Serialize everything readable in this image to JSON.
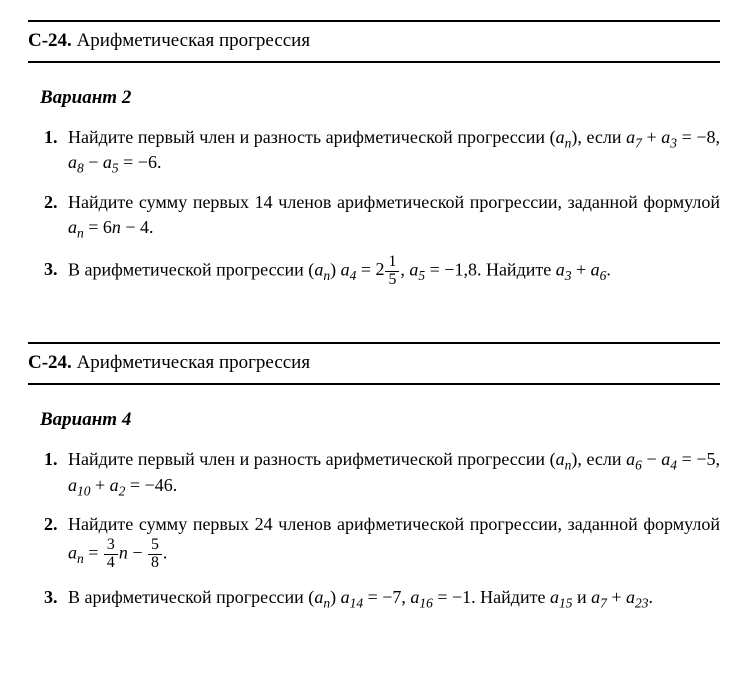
{
  "section": {
    "code": "С-24.",
    "title": "Арифметическая прогрессия"
  },
  "variant2": {
    "label": "Вариант 2",
    "q1": {
      "pre": "Найдите первый член и разность арифметической прогрессии (",
      "seq": "a",
      "seq_sub": "n",
      "mid": "), если ",
      "expr1_l": "a",
      "expr1_ls": "7",
      "expr1_op": " + ",
      "expr1_r": "a",
      "expr1_rs": "3",
      "expr1_eq": " = −8, ",
      "expr2_l": "a",
      "expr2_ls": "8",
      "expr2_op": " − ",
      "expr2_r": "a",
      "expr2_rs": "5",
      "expr2_eq": " = −6."
    },
    "q2": {
      "pre": "Найдите сумму первых 14 членов арифметической прогрессии, заданной формулой ",
      "f_l": "a",
      "f_ls": "n",
      "f_eq": " = 6",
      "f_var": "n",
      "f_tail": " − 4."
    },
    "q3": {
      "pre": "В арифметической прогрессии (",
      "seq": "a",
      "seq_sub": "n",
      "mid": ") ",
      "a4_l": "a",
      "a4_s": "4",
      "a4_eq": " = ",
      "a4_whole": "2",
      "a4_num": "1",
      "a4_den": "5",
      "comma": ", ",
      "a5_l": "a",
      "a5_s": "5",
      "a5_eq": " = −1,8. Найдите ",
      "res_l": "a",
      "res_ls": "3",
      "res_op": " + ",
      "res_r": "a",
      "res_rs": "6",
      "tail": "."
    }
  },
  "variant4": {
    "label": "Вариант 4",
    "q1": {
      "pre": "Найдите первый член и разность арифметической прогрессии (",
      "seq": "a",
      "seq_sub": "n",
      "mid": "), если ",
      "e1_l": "a",
      "e1_ls": "6",
      "e1_op": " − ",
      "e1_r": "a",
      "e1_rs": "4",
      "e1_eq": " = −5, ",
      "e2_l": "a",
      "e2_ls": "10",
      "e2_op": " + ",
      "e2_r": "a",
      "e2_rs": "2",
      "e2_eq": " = −46."
    },
    "q2": {
      "pre": "Найдите сумму первых 24 членов арифметической прогрессии, заданной формулой ",
      "f_l": "a",
      "f_ls": "n",
      "f_eq": " = ",
      "f1_num": "3",
      "f1_den": "4",
      "f_var": "n",
      "f_mid": " − ",
      "f2_num": "5",
      "f2_den": "8",
      "tail": "."
    },
    "q3": {
      "pre": "В арифметической прогрессии (",
      "seq": "a",
      "seq_sub": "n",
      "mid": ") ",
      "a14_l": "a",
      "a14_s": "14",
      "a14_eq": " = −7, ",
      "a16_l": "a",
      "a16_s": "16",
      "a16_eq": " = −1. Найдите ",
      "r1_l": "a",
      "r1_s": "15",
      "and": " и ",
      "r2_l": "a",
      "r2_ls": "7",
      "r2_op": " + ",
      "r2_r": "a",
      "r2_rs": "23",
      "tail": "."
    }
  }
}
